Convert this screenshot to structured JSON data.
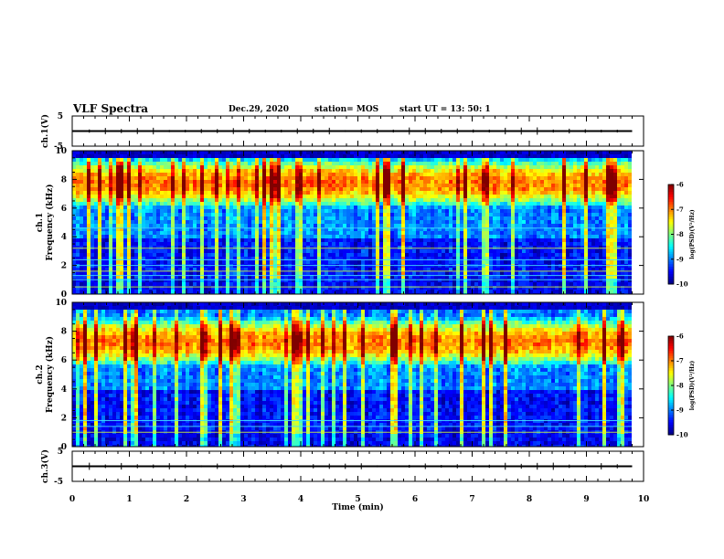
{
  "header": {
    "title": "VLF Spectra",
    "date": "Dec.29, 2020",
    "station": "station= MOS",
    "start_ut": "start  UT =   13: 50: 1"
  },
  "chart_data": [
    {
      "type": "line",
      "panel": "ch1-waveform",
      "ylabel": "ch.1(V)",
      "ylim": [
        -5,
        5
      ],
      "yticks": [
        "5",
        "-5"
      ],
      "series": [
        {
          "x": [
            0,
            9.8
          ],
          "y": [
            0,
            0
          ]
        }
      ]
    },
    {
      "type": "heatmap",
      "panel": "ch1-spectrogram",
      "ylabel": "ch.1\nFrequency (kHz)",
      "ylabel_lines": [
        "ch.1",
        "Frequency (kHz)"
      ],
      "ylim": [
        0,
        10
      ],
      "yticks": [
        "0",
        "2",
        "4",
        "6",
        "8",
        "10"
      ],
      "xlim": [
        0,
        9.8
      ],
      "colorbar": {
        "label": "log(PSD)(V²/Hz)",
        "range": [
          -10,
          -6
        ],
        "ticks": [
          "-6",
          "-7",
          "-8",
          "-9",
          "-10"
        ]
      },
      "emission_band_khz": [
        6,
        9.5
      ],
      "narrowband_lines_khz": [
        0.5,
        1,
        1.3,
        1.6,
        2,
        2.4,
        3.2,
        4.6
      ]
    },
    {
      "type": "heatmap",
      "panel": "ch2-spectrogram",
      "ylabel": "ch.2\nFrequency (kHz)",
      "ylabel_lines": [
        "ch.2",
        "Frequency (kHz)"
      ],
      "ylim": [
        0,
        10
      ],
      "yticks": [
        "0",
        "2",
        "4",
        "6",
        "8",
        "10"
      ],
      "xlim": [
        0,
        9.8
      ],
      "colorbar": {
        "label": "log(PSD)(V²/Hz)",
        "range": [
          -10,
          -6
        ],
        "ticks": [
          "-6",
          "-7",
          "-8",
          "-9",
          "-10"
        ]
      },
      "emission_band_khz": [
        5.5,
        9
      ],
      "narrowband_lines_khz": [
        1,
        1.4,
        1.8
      ]
    },
    {
      "type": "line",
      "panel": "ch3-waveform",
      "ylabel": "ch.3(V)",
      "ylim": [
        -5,
        5
      ],
      "yticks": [
        "5",
        "-5"
      ],
      "series": [
        {
          "x": [
            0,
            9.8
          ],
          "y": [
            0,
            0
          ]
        }
      ]
    }
  ],
  "xaxis": {
    "label": "Time  (min)",
    "range": [
      0,
      10
    ],
    "ticks": [
      "0",
      "1",
      "2",
      "3",
      "4",
      "5",
      "6",
      "7",
      "8",
      "9",
      "10"
    ]
  }
}
